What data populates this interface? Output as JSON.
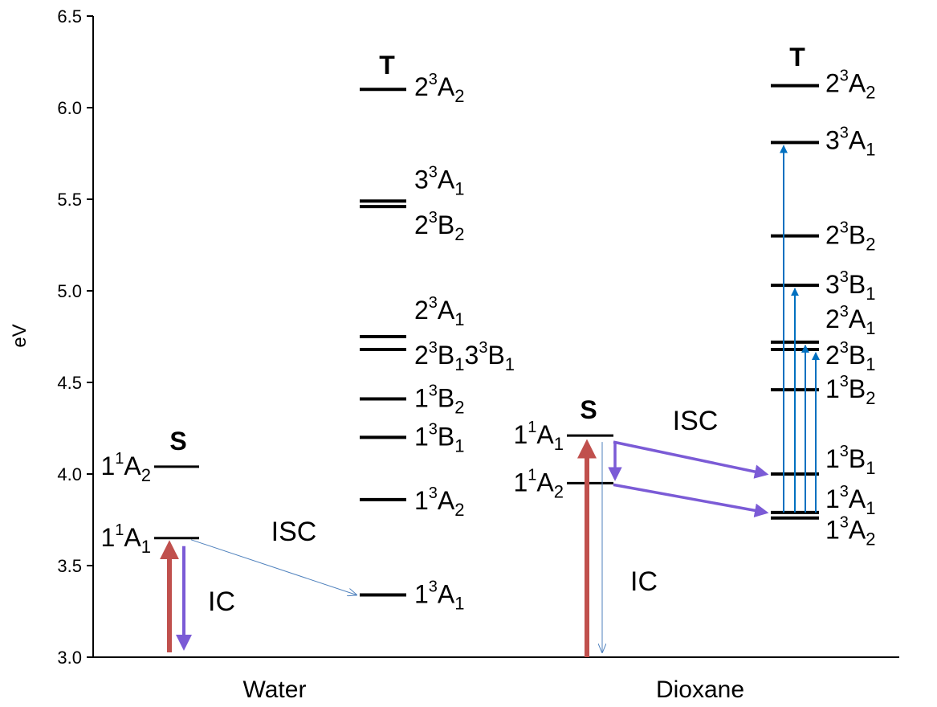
{
  "y_axis": {
    "label": "eV",
    "range": [
      3.0,
      6.5
    ],
    "ticks": [
      "3.0",
      "3.5",
      "4.0",
      "4.5",
      "5.0",
      "5.5",
      "6.0",
      "6.5"
    ]
  },
  "groups": [
    "Water",
    "Dioxane"
  ],
  "colors": {
    "level": "#000000",
    "absorption": "#c0504d",
    "relaxation": "#7b5bd6",
    "isc_water": "#4f81bd",
    "excitation_dioxane": "#0070c0"
  },
  "water": {
    "singlet_header": "S",
    "triplet_header": "T",
    "singlets": [
      {
        "state": "1¹A₂",
        "energy": 4.04
      },
      {
        "state": "1¹A₁",
        "energy": 3.65
      }
    ],
    "triplets": [
      {
        "state": "2³A₂",
        "energy": 6.1
      },
      {
        "state": "3³A₁",
        "energy": 5.49
      },
      {
        "state": "2³B₂",
        "energy": 5.46
      },
      {
        "state": "2³A₁",
        "energy": 4.75
      },
      {
        "state": "2³B₁3³B₁",
        "energy": 4.68
      },
      {
        "state": "1³B₂",
        "energy": 4.41
      },
      {
        "state": "1³B₁",
        "energy": 4.2
      },
      {
        "state": "1³A₂",
        "energy": 3.86
      },
      {
        "state": "1³A₁",
        "energy": 3.34
      }
    ],
    "processes": {
      "isc": "ISC",
      "ic": "IC"
    }
  },
  "dioxane": {
    "singlet_header": "S",
    "triplet_header": "T",
    "singlets": [
      {
        "state": "1¹A₁",
        "energy": 4.21
      },
      {
        "state": "1¹A₂",
        "energy": 3.95
      }
    ],
    "triplets": [
      {
        "state": "2³A₂",
        "energy": 6.12
      },
      {
        "state": "3³A₁",
        "energy": 5.81
      },
      {
        "state": "2³B₂",
        "energy": 5.3
      },
      {
        "state": "3³B₁",
        "energy": 5.03
      },
      {
        "state": "2³A₁",
        "energy": 4.72
      },
      {
        "state": "2³B₁",
        "energy": 4.68
      },
      {
        "state": "1³B₂",
        "energy": 4.46
      },
      {
        "state": "1³B₁",
        "energy": 4.0
      },
      {
        "state": "1³A₁",
        "energy": 3.79
      },
      {
        "state": "1³A₂",
        "energy": 3.76
      }
    ],
    "processes": {
      "isc": "ISC",
      "ic": "IC"
    }
  }
}
